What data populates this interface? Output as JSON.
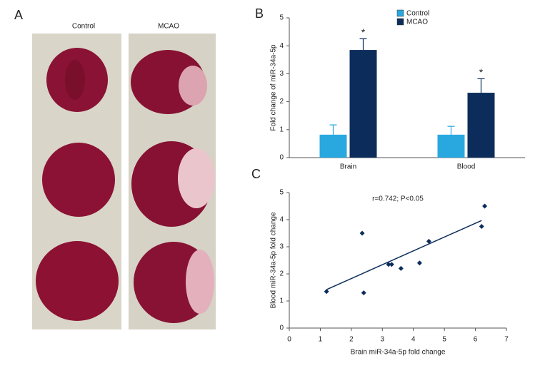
{
  "panel_a": {
    "label": "A",
    "columns": [
      "Control",
      "MCAO"
    ]
  },
  "chart_data": [
    {
      "type": "bar",
      "panel_label": "B",
      "ylabel": "Fold change of miR-34a-5p",
      "categories": [
        "Brain",
        "Blood"
      ],
      "series": [
        {
          "name": "Control",
          "color": "#29a8e0",
          "values": [
            0.82,
            0.82
          ],
          "errors": [
            0.35,
            0.3
          ]
        },
        {
          "name": "MCAO",
          "color": "#0c2d5b",
          "values": [
            3.85,
            2.32
          ],
          "errors": [
            0.4,
            0.5
          ],
          "significance": [
            "*",
            "*"
          ]
        }
      ],
      "ylim": [
        0,
        5
      ],
      "yticks": [
        0,
        1,
        2,
        3,
        4,
        5
      ],
      "legend": "top"
    },
    {
      "type": "scatter",
      "panel_label": "C",
      "annotation": "r=0.742; P<0.05",
      "xlabel": "Brain miR-34a-5p fold change",
      "ylabel": "Blood miR-34a-5p fold change",
      "color": "#0c2d5b",
      "x": [
        1.2,
        2.4,
        2.35,
        3.2,
        3.3,
        3.6,
        4.2,
        4.5,
        6.2,
        6.3
      ],
      "values": [
        1.35,
        1.3,
        3.5,
        2.35,
        2.35,
        2.2,
        2.4,
        3.2,
        3.75,
        4.5
      ],
      "trendline": {
        "x": [
          1.2,
          6.2
        ],
        "y": [
          1.42,
          3.97
        ]
      },
      "xlim": [
        0,
        7
      ],
      "xticks": [
        0,
        1,
        2,
        3,
        4,
        5,
        6,
        7
      ],
      "ylim": [
        0,
        5
      ],
      "yticks": [
        0,
        1,
        2,
        3,
        4,
        5
      ]
    }
  ]
}
